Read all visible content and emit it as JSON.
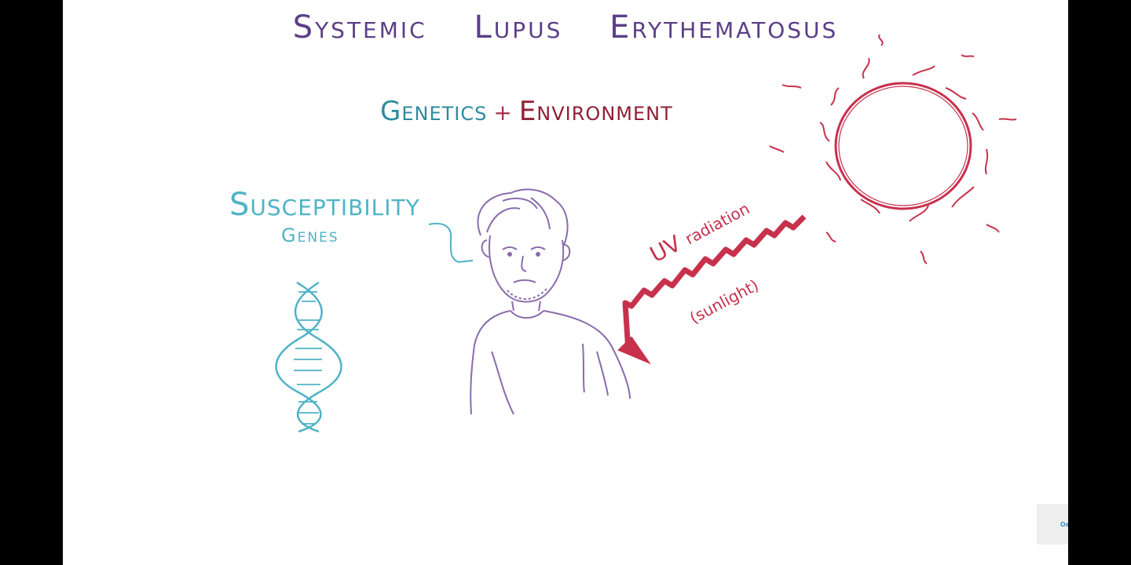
{
  "slide": {
    "title_words": [
      "Systemic",
      "Lupus",
      "Erythematosus"
    ],
    "subtitle": {
      "genetics": "Genetics",
      "plus": "+",
      "environment": "Environment"
    },
    "susceptibility": "Susceptibility",
    "genes": "Genes",
    "uv_label_main": "UV",
    "uv_label_rest": "radiation",
    "sunlight_label": "(sunlight)"
  },
  "watermark": {
    "text": "Osmosis"
  },
  "colors": {
    "title": "#5b3f86",
    "genetics": "#2c8c9c",
    "environment": "#8e2035",
    "dna": "#4fb3c5",
    "person": "#8a6cab",
    "sun": "#c8314c"
  },
  "icons": [
    "dna-icon",
    "person-illustration",
    "sun-icon",
    "uv-arrow-icon"
  ]
}
